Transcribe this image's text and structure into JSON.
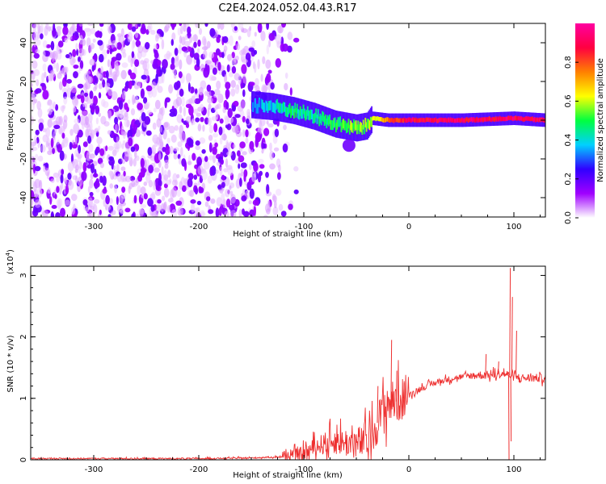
{
  "title": "C2E4.2024.052.04.43.R17",
  "chart_data": [
    {
      "type": "heatmap",
      "xlabel": "Height of straight line (km)",
      "ylabel": "Frequency (Hz)",
      "xlim": [
        -360,
        130
      ],
      "ylim": [
        -50,
        50
      ],
      "x_ticks": [
        -300,
        -200,
        -100,
        0,
        100
      ],
      "y_ticks": [
        -40,
        -20,
        0,
        20,
        40
      ],
      "colorbar": {
        "label": "Normalized spectral amplitude",
        "range": [
          0,
          1
        ],
        "ticks": [
          "0.0",
          "0.2",
          "0.4",
          "0.6",
          "0.8"
        ],
        "colors": [
          "#ffffff",
          "#a000ff",
          "#3000ff",
          "#00d0ff",
          "#00ff40",
          "#ffff00",
          "#ff8000",
          "#ff0040",
          "#ff00a0"
        ]
      },
      "noise_region": {
        "x_range": [
          -360,
          -120
        ],
        "freq_range": [
          -50,
          50
        ],
        "amplitude": 0.15
      },
      "ridge": [
        {
          "x": -150,
          "f": 8,
          "a": 0.3
        },
        {
          "x": -130,
          "f": 7,
          "a": 0.4
        },
        {
          "x": -110,
          "f": 5,
          "a": 0.45
        },
        {
          "x": -90,
          "f": 2,
          "a": 0.45
        },
        {
          "x": -70,
          "f": -2,
          "a": 0.5
        },
        {
          "x": -50,
          "f": -4,
          "a": 0.55
        },
        {
          "x": -40,
          "f": -3,
          "a": 0.55
        },
        {
          "x": -35,
          "f": 1,
          "a": 0.6
        },
        {
          "x": -20,
          "f": 0,
          "a": 0.8
        },
        {
          "x": 0,
          "f": 0,
          "a": 0.9
        },
        {
          "x": 50,
          "f": 0,
          "a": 0.9
        },
        {
          "x": 100,
          "f": 1,
          "a": 0.9
        },
        {
          "x": 130,
          "f": 0,
          "a": 0.9
        }
      ]
    },
    {
      "type": "line",
      "xlabel": "Height of straight line (km)",
      "ylabel": "SNR (10 * v/v)",
      "yscale_label": "(x10",
      "yscale_exp": "4",
      "xlim": [
        -360,
        130
      ],
      "ylim": [
        0,
        3.15
      ],
      "x_ticks": [
        -300,
        -200,
        -100,
        0,
        100
      ],
      "y_ticks": [
        0,
        1,
        2,
        3
      ],
      "color": "#ee3030",
      "series": [
        {
          "x": [
            -360,
            -300,
            -200,
            -150,
            -120,
            -100,
            -90,
            -80,
            -70,
            -60,
            -50,
            -40,
            -35,
            -30,
            -25,
            -20,
            -15,
            -10,
            0,
            10,
            20,
            30,
            40,
            50,
            60,
            70,
            80,
            90,
            95,
            100,
            110,
            120,
            130
          ],
          "y": [
            0.02,
            0.02,
            0.02,
            0.03,
            0.05,
            0.1,
            0.2,
            0.27,
            0.3,
            0.28,
            0.27,
            0.3,
            0.4,
            0.6,
            0.8,
            0.9,
            0.95,
            0.95,
            1.05,
            1.15,
            1.22,
            1.28,
            1.32,
            1.35,
            1.37,
            1.38,
            1.38,
            1.4,
            1.38,
            1.35,
            1.33,
            1.33,
            1.33
          ]
        }
      ],
      "spikes": [
        {
          "x": -17,
          "y": 1.95
        },
        {
          "x": -30,
          "y": 1.2
        },
        {
          "x": -12,
          "y": 1.45
        },
        {
          "x": -5,
          "y": 1.25
        },
        {
          "x": 73,
          "y": 1.72
        },
        {
          "x": 85,
          "y": 1.6
        },
        {
          "x": 96,
          "y": 3.12
        },
        {
          "x": 98,
          "y": 2.65
        },
        {
          "x": 102,
          "y": 2.1
        }
      ],
      "dips": [
        {
          "x": 95,
          "y": 0.0
        },
        {
          "x": 97,
          "y": 0.3
        }
      ]
    }
  ]
}
